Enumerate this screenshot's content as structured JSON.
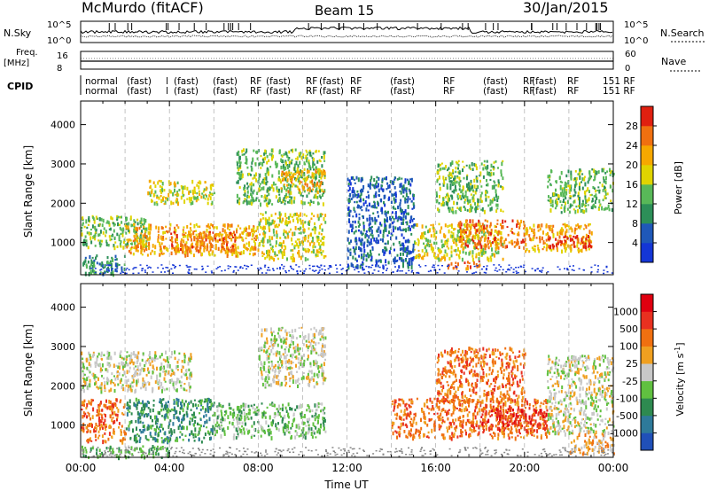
{
  "header": {
    "station": "McMurdo (fitACF)",
    "beam": "Beam 15",
    "date": "30/Jan/2015"
  },
  "top_panels": {
    "nsky_label": "N.Sky",
    "nsky_ticks": [
      "10^5",
      "10^0"
    ],
    "nsearch_label": "N.Search",
    "nsearch_ticks": [
      "10^5",
      "10^0"
    ],
    "freq_label_1": "Freq.",
    "freq_label_2": "[MHz]",
    "freq_ticks": [
      "16",
      "8"
    ],
    "nave_label": "Nave",
    "nave_ticks": [
      "60",
      "0"
    ],
    "cpid_label": "CPID",
    "cpid_row1": [
      "normal",
      "(fast)",
      "l",
      "(fast)",
      "(fast)",
      "RF",
      "(fast)",
      "RF",
      "(fast)",
      "RF",
      "(fast)",
      "RF",
      "(fast)",
      "RF",
      "(fast)",
      "RF",
      "151 RF"
    ],
    "cpid_row2": [
      "normal",
      "(fast)",
      "l",
      "(fast)",
      "(fast)",
      "RF",
      "(fast)",
      "RF",
      "(fast)",
      "RF",
      "(fast)",
      "RF",
      "(fast)",
      "RF",
      "(fast)",
      "RF",
      "151 RF"
    ]
  },
  "chart_data": [
    {
      "type": "heatmap",
      "name": "power",
      "ylabel": "Slant Range [km]",
      "xlabel": "",
      "x_ticks": [
        "00:00",
        "04:00",
        "08:00",
        "12:00",
        "16:00",
        "20:00",
        "00:00"
      ],
      "xlim_hours": [
        0,
        24
      ],
      "ylim": [
        180,
        4600
      ],
      "y_ticks": [
        1000,
        2000,
        3000,
        4000
      ],
      "colorbar": {
        "label": "Power [dB]",
        "ticks": [
          4,
          8,
          12,
          16,
          20,
          24,
          28
        ],
        "range": [
          0,
          32
        ],
        "colors": [
          "#1436d6",
          "#1f58b8",
          "#2c8f58",
          "#58b858",
          "#e0d400",
          "#f6a800",
          "#f07010",
          "#e02010"
        ]
      },
      "regions": [
        {
          "t0": 0.0,
          "t1": 2.0,
          "r0": 200,
          "r1": 700,
          "level": 2
        },
        {
          "t0": 0.0,
          "t1": 3.0,
          "r0": 900,
          "r1": 1700,
          "level": 3
        },
        {
          "t0": 2.0,
          "t1": 8.0,
          "r0": 700,
          "r1": 1500,
          "level": 5
        },
        {
          "t0": 4.0,
          "t1": 7.0,
          "r0": 800,
          "r1": 1300,
          "level": 6
        },
        {
          "t0": 8.0,
          "t1": 11.0,
          "r0": 600,
          "r1": 1800,
          "level": 4
        },
        {
          "t0": 3.0,
          "t1": 6.0,
          "r0": 2000,
          "r1": 2600,
          "level": 4
        },
        {
          "t0": 7.0,
          "t1": 11.0,
          "r0": 2000,
          "r1": 3400,
          "level": 3
        },
        {
          "t0": 9.0,
          "t1": 11.0,
          "r0": 2300,
          "r1": 2900,
          "level": 5
        },
        {
          "t0": 15.0,
          "t1": 19.0,
          "r0": 600,
          "r1": 1500,
          "level": 4
        },
        {
          "t0": 17.0,
          "t1": 20.0,
          "r0": 900,
          "r1": 1600,
          "level": 6
        },
        {
          "t0": 20.0,
          "t1": 23.0,
          "r0": 800,
          "r1": 1500,
          "level": 5
        },
        {
          "t0": 21.0,
          "t1": 23.0,
          "r0": 900,
          "r1": 1200,
          "level": 7
        },
        {
          "t0": 16.0,
          "t1": 19.0,
          "r0": 1800,
          "r1": 3100,
          "level": 3
        },
        {
          "t0": 21.0,
          "t1": 24.0,
          "r0": 1800,
          "r1": 2900,
          "level": 3
        },
        {
          "t0": 16.5,
          "t1": 18.0,
          "r0": 350,
          "r1": 550,
          "level": 6
        },
        {
          "t0": 12.0,
          "t1": 15.0,
          "r0": 400,
          "r1": 2700,
          "level": 1
        }
      ]
    },
    {
      "type": "heatmap",
      "name": "velocity",
      "ylabel": "Slant Range [km]",
      "xlabel": "Time UT",
      "x_ticks": [
        "00:00",
        "04:00",
        "08:00",
        "12:00",
        "16:00",
        "20:00",
        "00:00"
      ],
      "xlim_hours": [
        0,
        24
      ],
      "ylim": [
        180,
        4600
      ],
      "y_ticks": [
        1000,
        2000,
        3000,
        4000
      ],
      "colorbar": {
        "label": "Velocity [m s^-1]",
        "ticks": [
          "1000",
          "500",
          "100",
          "25",
          "-25",
          "-100",
          "-500",
          "-1000"
        ],
        "colors": [
          "#2050b8",
          "#2e7a9a",
          "#2e8a50",
          "#60c040",
          "#c8c8c8",
          "#f0a020",
          "#f07010",
          "#e83020",
          "#e00010"
        ]
      },
      "regions": [
        {
          "t0": 0.0,
          "t1": 2.0,
          "r0": 600,
          "r1": 1700,
          "level": 6
        },
        {
          "t0": 2.0,
          "t1": 6.0,
          "r0": 600,
          "r1": 1700,
          "level": 2
        },
        {
          "t0": 6.0,
          "t1": 11.0,
          "r0": 700,
          "r1": 1600,
          "level": 3
        },
        {
          "t0": 0.0,
          "t1": 5.0,
          "r0": 1900,
          "r1": 2900,
          "level": 4
        },
        {
          "t0": 8.0,
          "t1": 11.0,
          "r0": 2000,
          "r1": 3500,
          "level": 4
        },
        {
          "t0": 0.0,
          "t1": 4.0,
          "r0": 200,
          "r1": 500,
          "level": 3
        },
        {
          "t0": 14.0,
          "t1": 21.0,
          "r0": 700,
          "r1": 1700,
          "level": 6
        },
        {
          "t0": 16.0,
          "t1": 20.0,
          "r0": 1600,
          "r1": 3000,
          "level": 6
        },
        {
          "t0": 18.0,
          "t1": 21.0,
          "r0": 900,
          "r1": 1500,
          "level": 7
        },
        {
          "t0": 21.0,
          "t1": 24.0,
          "r0": 800,
          "r1": 2000,
          "level": 4
        },
        {
          "t0": 21.0,
          "t1": 24.0,
          "r0": 2000,
          "r1": 2800,
          "level": 4
        },
        {
          "t0": 22.0,
          "t1": 24.0,
          "r0": 300,
          "r1": 800,
          "level": 5
        }
      ]
    }
  ]
}
